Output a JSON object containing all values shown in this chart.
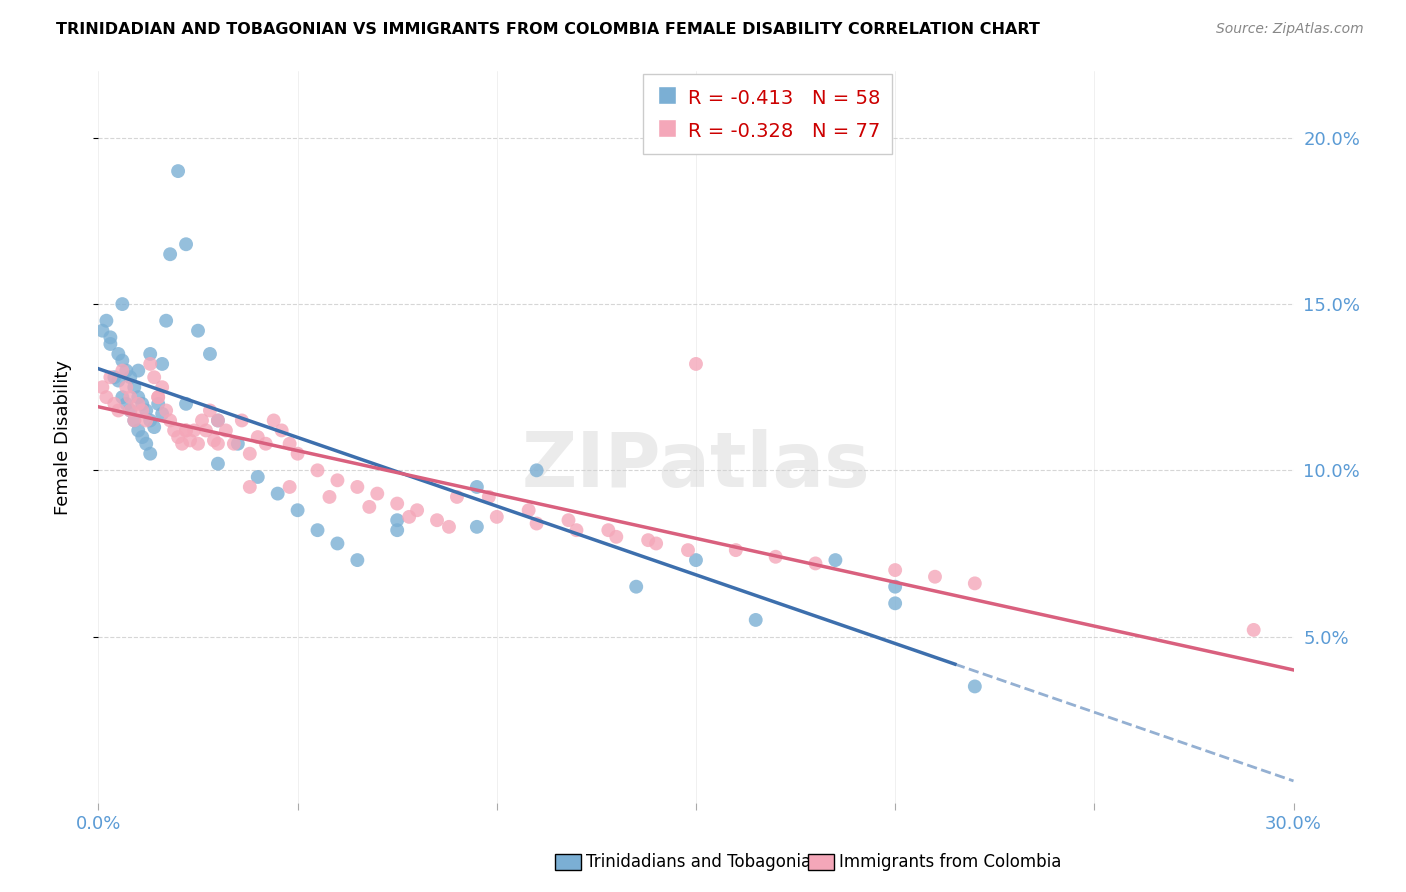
{
  "title": "TRINIDADIAN AND TOBAGONIAN VS IMMIGRANTS FROM COLOMBIA FEMALE DISABILITY CORRELATION CHART",
  "source": "Source: ZipAtlas.com",
  "ylabel": "Female Disability",
  "xlim": [
    0.0,
    0.3
  ],
  "ylim": [
    0.0,
    0.22
  ],
  "xticks": [
    0.0,
    0.05,
    0.1,
    0.15,
    0.2,
    0.25,
    0.3
  ],
  "yticks_right": [
    0.05,
    0.1,
    0.15,
    0.2
  ],
  "ytick_labels_right": [
    "5.0%",
    "10.0%",
    "15.0%",
    "20.0%"
  ],
  "blue_R": -0.413,
  "blue_N": 58,
  "pink_R": -0.328,
  "pink_N": 77,
  "blue_color": "#7bafd4",
  "pink_color": "#f4a7b9",
  "blue_line_color": "#3d6fad",
  "pink_line_color": "#d9607e",
  "axis_color": "#5b9bd5",
  "legend_label_blue": "Trinidadians and Tobagonians",
  "legend_label_pink": "Immigrants from Colombia",
  "background_color": "#ffffff",
  "watermark": "ZIPatlas",
  "blue_x": [
    0.001,
    0.002,
    0.003,
    0.003,
    0.004,
    0.005,
    0.005,
    0.006,
    0.006,
    0.007,
    0.007,
    0.008,
    0.008,
    0.009,
    0.009,
    0.01,
    0.01,
    0.011,
    0.011,
    0.012,
    0.012,
    0.013,
    0.013,
    0.014,
    0.015,
    0.016,
    0.017,
    0.018,
    0.02,
    0.022,
    0.025,
    0.028,
    0.03,
    0.035,
    0.04,
    0.045,
    0.05,
    0.055,
    0.06,
    0.065,
    0.075,
    0.095,
    0.11,
    0.135,
    0.15,
    0.165,
    0.185,
    0.2,
    0.22,
    0.006,
    0.01,
    0.013,
    0.016,
    0.022,
    0.03,
    0.075,
    0.095,
    0.2
  ],
  "blue_y": [
    0.142,
    0.145,
    0.138,
    0.14,
    0.128,
    0.135,
    0.127,
    0.133,
    0.122,
    0.13,
    0.12,
    0.128,
    0.118,
    0.125,
    0.115,
    0.122,
    0.112,
    0.12,
    0.11,
    0.118,
    0.108,
    0.115,
    0.105,
    0.113,
    0.12,
    0.117,
    0.145,
    0.165,
    0.19,
    0.168,
    0.142,
    0.135,
    0.115,
    0.108,
    0.098,
    0.093,
    0.088,
    0.082,
    0.078,
    0.073,
    0.082,
    0.095,
    0.1,
    0.065,
    0.073,
    0.055,
    0.073,
    0.065,
    0.035,
    0.15,
    0.13,
    0.135,
    0.132,
    0.12,
    0.102,
    0.085,
    0.083,
    0.06
  ],
  "pink_x": [
    0.001,
    0.002,
    0.003,
    0.004,
    0.005,
    0.006,
    0.007,
    0.008,
    0.009,
    0.01,
    0.011,
    0.012,
    0.013,
    0.014,
    0.015,
    0.016,
    0.017,
    0.018,
    0.019,
    0.02,
    0.021,
    0.022,
    0.023,
    0.024,
    0.025,
    0.026,
    0.027,
    0.028,
    0.029,
    0.03,
    0.032,
    0.034,
    0.036,
    0.038,
    0.04,
    0.042,
    0.044,
    0.046,
    0.048,
    0.05,
    0.055,
    0.06,
    0.065,
    0.07,
    0.075,
    0.08,
    0.085,
    0.09,
    0.1,
    0.11,
    0.12,
    0.13,
    0.14,
    0.15,
    0.16,
    0.17,
    0.18,
    0.2,
    0.21,
    0.22,
    0.008,
    0.015,
    0.022,
    0.03,
    0.038,
    0.048,
    0.058,
    0.068,
    0.078,
    0.088,
    0.098,
    0.108,
    0.118,
    0.128,
    0.138,
    0.148,
    0.29
  ],
  "pink_y": [
    0.125,
    0.122,
    0.128,
    0.12,
    0.118,
    0.13,
    0.125,
    0.122,
    0.115,
    0.12,
    0.118,
    0.115,
    0.132,
    0.128,
    0.122,
    0.125,
    0.118,
    0.115,
    0.112,
    0.11,
    0.108,
    0.112,
    0.109,
    0.112,
    0.108,
    0.115,
    0.112,
    0.118,
    0.109,
    0.115,
    0.112,
    0.108,
    0.115,
    0.105,
    0.11,
    0.108,
    0.115,
    0.112,
    0.108,
    0.105,
    0.1,
    0.097,
    0.095,
    0.093,
    0.09,
    0.088,
    0.085,
    0.092,
    0.086,
    0.084,
    0.082,
    0.08,
    0.078,
    0.132,
    0.076,
    0.074,
    0.072,
    0.07,
    0.068,
    0.066,
    0.118,
    0.122,
    0.112,
    0.108,
    0.095,
    0.095,
    0.092,
    0.089,
    0.086,
    0.083,
    0.092,
    0.088,
    0.085,
    0.082,
    0.079,
    0.076,
    0.052
  ]
}
